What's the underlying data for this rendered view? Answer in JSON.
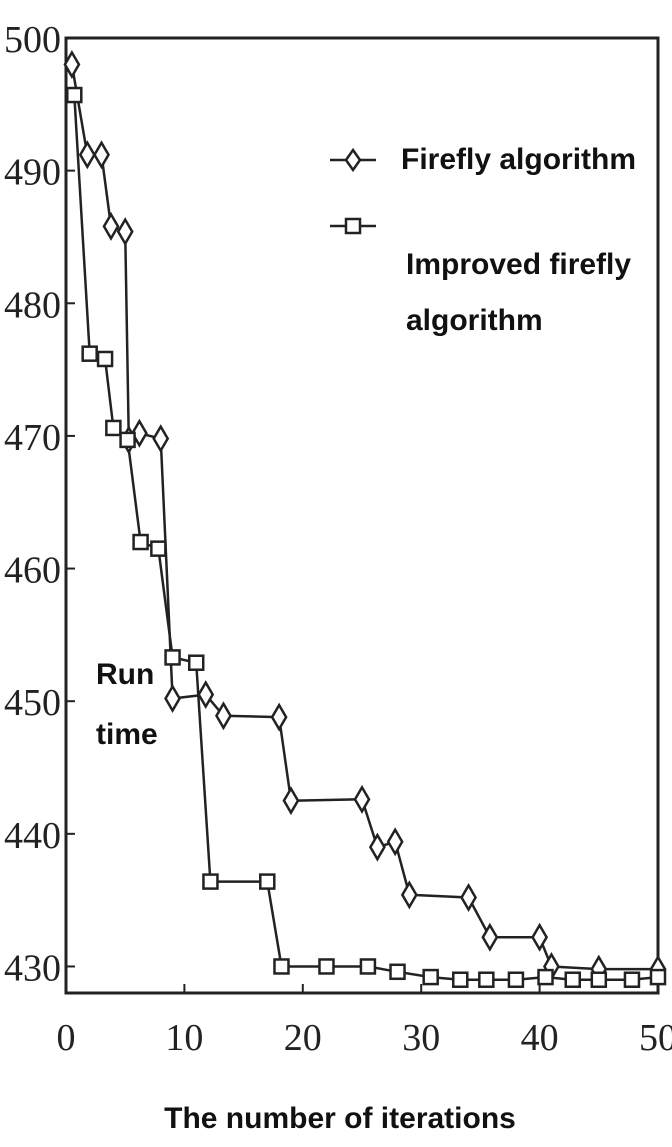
{
  "chart_data": {
    "type": "line",
    "title": "",
    "xlabel": "The number of iterations",
    "ylabel": "",
    "xlim": [
      0,
      50
    ],
    "ylim": [
      428,
      500
    ],
    "x_ticks": [
      "0",
      "10",
      "20",
      "30",
      "40",
      "50"
    ],
    "y_ticks": [
      "430",
      "440",
      "450",
      "460",
      "470",
      "480",
      "490",
      "500"
    ],
    "grid": false,
    "legend_position": "top-right",
    "annotation": [
      "Run",
      "time"
    ],
    "series": [
      {
        "name": "Firefly algorithm",
        "marker": "diamond",
        "points": [
          [
            0.5,
            498
          ],
          [
            1.8,
            491.2
          ],
          [
            3.0,
            491.2
          ],
          [
            3.8,
            485.8
          ],
          [
            5.0,
            485.4
          ],
          [
            5.3,
            469.7
          ],
          [
            6.2,
            470.2
          ],
          [
            8.0,
            469.8
          ],
          [
            9.0,
            450.2
          ],
          [
            11.8,
            450.5
          ],
          [
            13.3,
            448.9
          ],
          [
            18.0,
            448.8
          ],
          [
            19.0,
            442.5
          ],
          [
            25.0,
            442.6
          ],
          [
            26.3,
            439.0
          ],
          [
            27.8,
            439.4
          ],
          [
            29.0,
            435.4
          ],
          [
            34.0,
            435.2
          ],
          [
            35.8,
            432.2
          ],
          [
            40.0,
            432.2
          ],
          [
            41.0,
            430.0
          ],
          [
            45.0,
            429.8
          ],
          [
            50.0,
            429.8
          ]
        ]
      },
      {
        "name": "Improved firefly algorithm",
        "marker": "square",
        "points": [
          [
            0.7,
            495.7
          ],
          [
            2.0,
            476.2
          ],
          [
            3.3,
            475.8
          ],
          [
            4.0,
            470.6
          ],
          [
            5.2,
            469.7
          ],
          [
            6.3,
            462.0
          ],
          [
            7.8,
            461.5
          ],
          [
            9.0,
            453.3
          ],
          [
            11.0,
            452.9
          ],
          [
            12.2,
            436.4
          ],
          [
            17.0,
            436.4
          ],
          [
            18.2,
            430.0
          ],
          [
            22.0,
            430.0
          ],
          [
            25.5,
            430.0
          ],
          [
            28.0,
            429.6
          ],
          [
            30.8,
            429.2
          ],
          [
            33.3,
            429.0
          ],
          [
            35.5,
            429.0
          ],
          [
            38.0,
            429.0
          ],
          [
            40.5,
            429.2
          ],
          [
            42.8,
            429.0
          ],
          [
            45.0,
            429.0
          ],
          [
            47.8,
            429.0
          ],
          [
            50.0,
            429.2
          ]
        ]
      }
    ]
  },
  "legend": {
    "series1_label": "Firefly algorithm",
    "series2_line1": "Improved firefly",
    "series2_line2": "algorithm"
  },
  "labels": {
    "annotation_line1": "Run",
    "annotation_line2": "time",
    "x_axis_title": "The number of iterations"
  }
}
